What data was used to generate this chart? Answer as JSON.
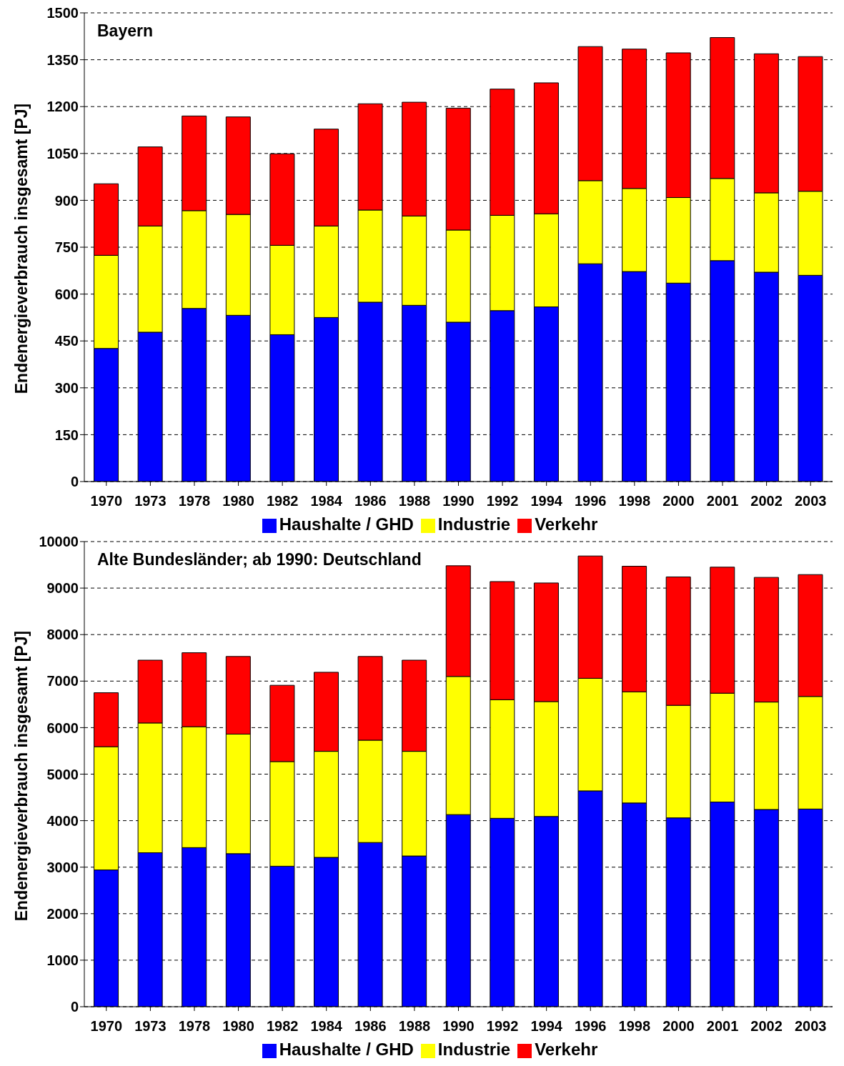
{
  "chart_data": [
    {
      "type": "bar",
      "title": "Bayern",
      "ylabel": "Endenergieverbrauch insgesamt [PJ]",
      "stacked": true,
      "grid": "y",
      "legend": "bottom",
      "categories": [
        "1970",
        "1973",
        "1978",
        "1980",
        "1982",
        "1984",
        "1986",
        "1988",
        "1990",
        "1992",
        "1994",
        "1996",
        "1998",
        "2000",
        "2001",
        "2002",
        "2003"
      ],
      "ylim": [
        0,
        1500
      ],
      "yticks": [
        0,
        150,
        300,
        450,
        600,
        750,
        900,
        1050,
        1200,
        1350,
        1500
      ],
      "series": [
        {
          "name": "Haushalte / GHD",
          "color": "#0000ff",
          "values": [
            426,
            478,
            554,
            532,
            470,
            525,
            574,
            564,
            510,
            547,
            559,
            697,
            672,
            635,
            707,
            670,
            660
          ]
        },
        {
          "name": "Industrie",
          "color": "#ffff00",
          "values": [
            298,
            340,
            313,
            323,
            286,
            293,
            295,
            286,
            295,
            305,
            298,
            266,
            266,
            274,
            263,
            254,
            269
          ]
        },
        {
          "name": "Verkehr",
          "color": "#ff0000",
          "values": [
            229,
            253,
            303,
            312,
            293,
            310,
            340,
            364,
            390,
            404,
            419,
            429,
            446,
            463,
            451,
            445,
            431
          ]
        }
      ]
    },
    {
      "type": "bar",
      "title": "Alte Bundesländer; ab 1990: Deutschland",
      "ylabel": "Endenergieverbrauch insgesamt [PJ]",
      "stacked": true,
      "grid": "y",
      "legend": "bottom",
      "categories": [
        "1970",
        "1973",
        "1978",
        "1980",
        "1982",
        "1984",
        "1986",
        "1988",
        "1990",
        "1992",
        "1994",
        "1996",
        "1998",
        "2000",
        "2001",
        "2002",
        "2003"
      ],
      "ylim": [
        0,
        10000
      ],
      "yticks": [
        0,
        1000,
        2000,
        3000,
        4000,
        5000,
        6000,
        7000,
        8000,
        9000,
        10000
      ],
      "series": [
        {
          "name": "Haushalte / GHD",
          "color": "#0000ff",
          "values": [
            2940,
            3310,
            3420,
            3290,
            3020,
            3210,
            3530,
            3240,
            4130,
            4050,
            4090,
            4640,
            4380,
            4060,
            4400,
            4240,
            4250
          ]
        },
        {
          "name": "Industrie",
          "color": "#ffff00",
          "values": [
            2650,
            2790,
            2600,
            2570,
            2250,
            2280,
            2200,
            2250,
            2970,
            2550,
            2470,
            2420,
            2390,
            2420,
            2340,
            2310,
            2420
          ]
        },
        {
          "name": "Verkehr",
          "color": "#ff0000",
          "values": [
            1160,
            1350,
            1590,
            1670,
            1640,
            1700,
            1800,
            1960,
            2380,
            2540,
            2550,
            2630,
            2700,
            2760,
            2710,
            2680,
            2620
          ]
        }
      ]
    }
  ]
}
